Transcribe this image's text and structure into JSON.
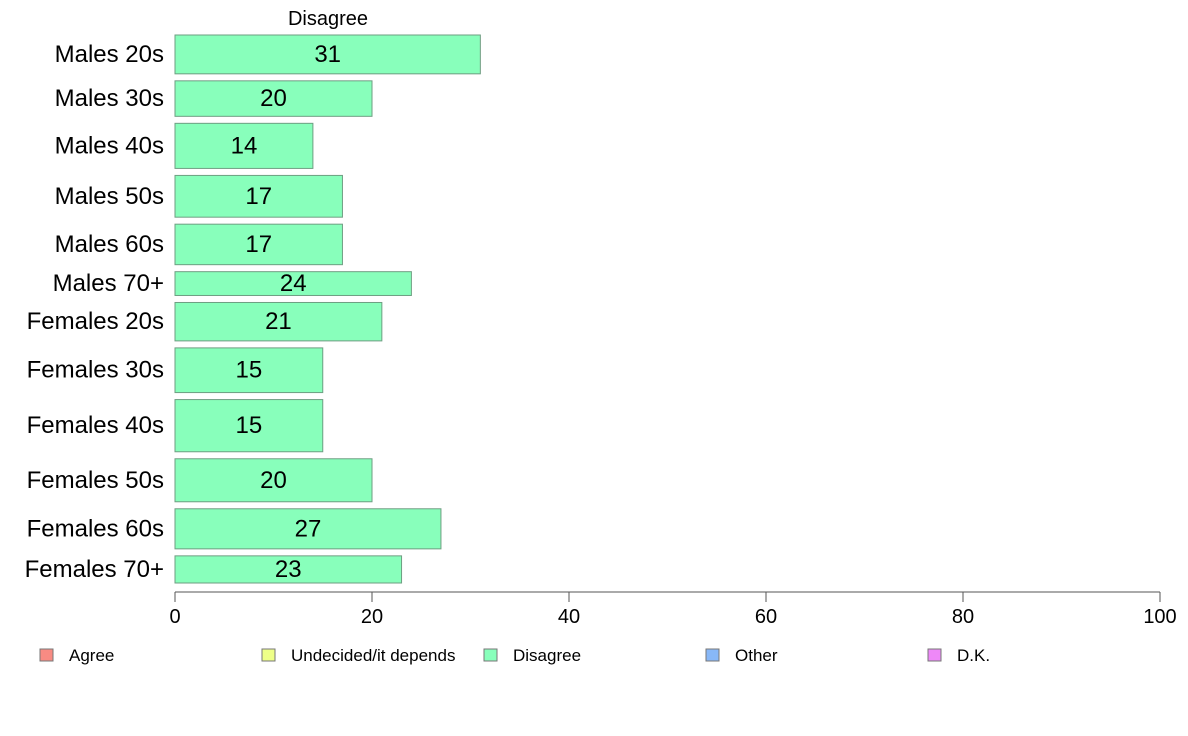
{
  "chart_data": {
    "type": "bar",
    "orientation": "horizontal",
    "title": "Disagree",
    "categories": [
      "Males 20s",
      "Males 30s",
      "Males 40s",
      "Males 50s",
      "Males 60s",
      "Males 70+",
      "Females 20s",
      "Females 30s",
      "Females 40s",
      "Females 50s",
      "Females 60s",
      "Females 70+"
    ],
    "values": [
      31,
      20,
      14,
      17,
      17,
      24,
      21,
      15,
      15,
      20,
      27,
      23
    ],
    "value_labels": [
      "31",
      "20",
      "14",
      "17",
      "17",
      "24",
      "21",
      "15",
      "15",
      "20",
      "27",
      "23"
    ],
    "bar_weights": [
      0.93,
      0.85,
      1.08,
      1.0,
      0.97,
      0.57,
      0.92,
      1.07,
      1.25,
      1.03,
      0.96,
      0.65
    ],
    "xlim": [
      0,
      100
    ],
    "xticks": [
      "0",
      "20",
      "40",
      "60",
      "80",
      "100"
    ],
    "grid": false,
    "bar_color": "#88ffbb",
    "legend": {
      "position": "bottom",
      "items": [
        {
          "label": "Agree",
          "color": "#f88b83"
        },
        {
          "label": "Undecided/it depends",
          "color": "#eeff88"
        },
        {
          "label": "Disagree",
          "color": "#88ffbb"
        },
        {
          "label": "Other",
          "color": "#88b8f8"
        },
        {
          "label": "D.K.",
          "color": "#ee88f8"
        }
      ]
    }
  }
}
